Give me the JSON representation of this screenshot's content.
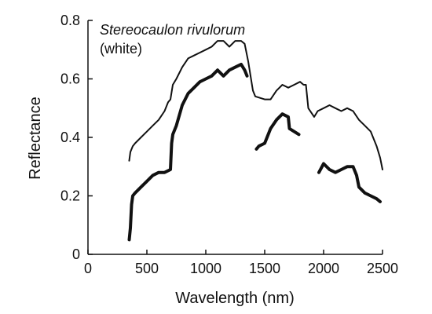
{
  "chart_data": {
    "type": "line",
    "title": "",
    "xlabel": "Wavelength (nm)",
    "ylabel": "Reflectance",
    "xlim": [
      0,
      2500
    ],
    "ylim": [
      0,
      0.8
    ],
    "x_ticks": [
      0,
      500,
      1000,
      1500,
      2000,
      2500
    ],
    "x_tick_labels": [
      "0",
      "500",
      "1000",
      "1500",
      "2000",
      "2500"
    ],
    "y_ticks": [
      0,
      0.2,
      0.4,
      0.6,
      0.8
    ],
    "y_tick_labels": [
      "0",
      "0.2",
      "0.4",
      "0.6",
      "0.8"
    ],
    "grid": false,
    "legend": "none",
    "annotations": [
      {
        "text": "Stereocaulon rivulorum",
        "style": "italic"
      },
      {
        "text": "(white)",
        "style": "normal"
      }
    ],
    "series": [
      {
        "style": "thin",
        "color": "#111111",
        "segments": [
          [
            [
              350,
              0.32
            ],
            [
              360,
              0.35
            ],
            [
              380,
              0.37
            ],
            [
              400,
              0.38
            ],
            [
              450,
              0.4
            ],
            [
              500,
              0.42
            ],
            [
              550,
              0.44
            ],
            [
              600,
              0.46
            ],
            [
              650,
              0.49
            ],
            [
              680,
              0.52
            ],
            [
              700,
              0.53
            ],
            [
              720,
              0.58
            ],
            [
              750,
              0.6
            ],
            [
              800,
              0.64
            ],
            [
              850,
              0.67
            ],
            [
              900,
              0.68
            ],
            [
              950,
              0.69
            ],
            [
              1000,
              0.7
            ],
            [
              1050,
              0.71
            ],
            [
              1100,
              0.73
            ],
            [
              1150,
              0.73
            ],
            [
              1200,
              0.71
            ],
            [
              1250,
              0.73
            ],
            [
              1300,
              0.73
            ],
            [
              1330,
              0.72
            ],
            [
              1360,
              0.66
            ],
            [
              1400,
              0.56
            ],
            [
              1420,
              0.54
            ],
            [
              1500,
              0.53
            ],
            [
              1550,
              0.53
            ],
            [
              1600,
              0.56
            ],
            [
              1650,
              0.58
            ],
            [
              1700,
              0.57
            ],
            [
              1750,
              0.58
            ],
            [
              1800,
              0.59
            ],
            [
              1830,
              0.58
            ],
            [
              1850,
              0.58
            ],
            [
              1870,
              0.5
            ],
            [
              1920,
              0.47
            ],
            [
              1950,
              0.49
            ],
            [
              2000,
              0.5
            ],
            [
              2050,
              0.51
            ],
            [
              2100,
              0.5
            ],
            [
              2150,
              0.49
            ],
            [
              2200,
              0.5
            ],
            [
              2250,
              0.49
            ],
            [
              2300,
              0.46
            ],
            [
              2350,
              0.44
            ],
            [
              2400,
              0.42
            ],
            [
              2450,
              0.37
            ],
            [
              2480,
              0.33
            ],
            [
              2500,
              0.29
            ]
          ]
        ]
      },
      {
        "style": "thick",
        "color": "#111111",
        "segments": [
          [
            [
              350,
              0.05
            ],
            [
              360,
              0.09
            ],
            [
              370,
              0.17
            ],
            [
              380,
              0.2
            ],
            [
              400,
              0.21
            ],
            [
              450,
              0.23
            ],
            [
              500,
              0.25
            ],
            [
              550,
              0.27
            ],
            [
              600,
              0.28
            ],
            [
              650,
              0.28
            ],
            [
              700,
              0.29
            ],
            [
              710,
              0.38
            ],
            [
              720,
              0.41
            ],
            [
              750,
              0.44
            ],
            [
              800,
              0.51
            ],
            [
              850,
              0.55
            ],
            [
              900,
              0.57
            ],
            [
              950,
              0.59
            ],
            [
              1000,
              0.6
            ],
            [
              1050,
              0.61
            ],
            [
              1100,
              0.63
            ],
            [
              1150,
              0.61
            ],
            [
              1200,
              0.63
            ],
            [
              1250,
              0.64
            ],
            [
              1300,
              0.65
            ],
            [
              1330,
              0.63
            ],
            [
              1350,
              0.61
            ]
          ],
          [
            [
              1430,
              0.36
            ],
            [
              1450,
              0.37
            ],
            [
              1500,
              0.38
            ],
            [
              1550,
              0.43
            ],
            [
              1600,
              0.46
            ],
            [
              1650,
              0.48
            ],
            [
              1700,
              0.47
            ],
            [
              1710,
              0.43
            ],
            [
              1750,
              0.42
            ],
            [
              1790,
              0.41
            ]
          ],
          [
            [
              1960,
              0.28
            ],
            [
              2000,
              0.31
            ],
            [
              2050,
              0.29
            ],
            [
              2100,
              0.28
            ],
            [
              2150,
              0.29
            ],
            [
              2200,
              0.3
            ],
            [
              2250,
              0.3
            ],
            [
              2280,
              0.27
            ],
            [
              2300,
              0.23
            ],
            [
              2350,
              0.21
            ],
            [
              2400,
              0.2
            ],
            [
              2450,
              0.19
            ],
            [
              2480,
              0.18
            ]
          ]
        ]
      }
    ]
  }
}
